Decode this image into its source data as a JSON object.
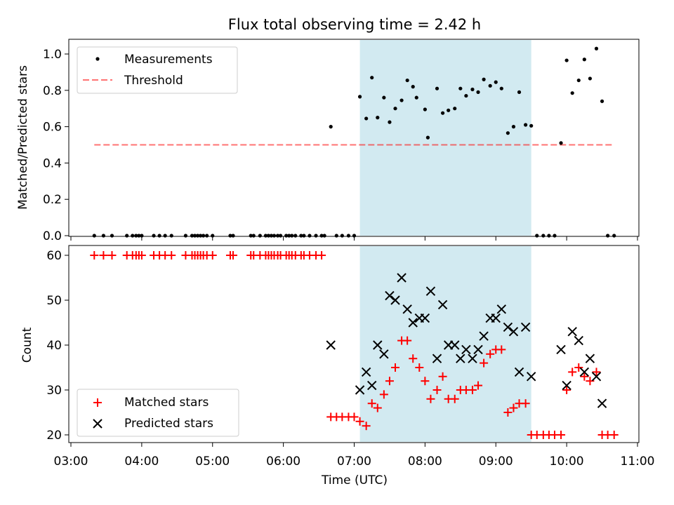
{
  "figure": {
    "title": "Flux total observing time = 2.42 h"
  },
  "chart_data": [
    {
      "type": "scatter",
      "ylabel": "Matched/Predicted stars",
      "ylim": [
        0,
        1.08
      ],
      "yticks": [
        "0.0",
        "0.2",
        "0.4",
        "0.6",
        "0.8",
        "1.0"
      ],
      "xlim": [
        3.0,
        11.0
      ],
      "shaded_span": [
        7.08,
        9.5
      ],
      "legend": [
        "Measurements",
        "Threshold"
      ],
      "threshold": {
        "x": [
          3.33,
          10.67
        ],
        "y": 0.5
      },
      "series": [
        {
          "name": "Measurements",
          "x": [
            3.33,
            3.46,
            3.58,
            3.79,
            3.87,
            3.92,
            3.96,
            4.0,
            4.17,
            4.25,
            4.33,
            4.42,
            4.62,
            4.71,
            4.75,
            4.79,
            4.83,
            4.87,
            4.92,
            5.0,
            5.25,
            5.29,
            5.54,
            5.58,
            5.67,
            5.75,
            5.79,
            5.83,
            5.87,
            5.92,
            5.96,
            6.04,
            6.08,
            6.12,
            6.17,
            6.25,
            6.29,
            6.37,
            6.46,
            6.54,
            6.58,
            6.67,
            6.75,
            6.83,
            6.92,
            7.0,
            7.08,
            7.17,
            7.25,
            7.33,
            7.42,
            7.5,
            7.58,
            7.67,
            7.75,
            7.83,
            7.88,
            8.0,
            8.04,
            8.17,
            8.25,
            8.33,
            8.42,
            8.5,
            8.58,
            8.67,
            8.75,
            8.83,
            8.92,
            9.0,
            9.08,
            9.17,
            9.25,
            9.33,
            9.42,
            9.5,
            9.58,
            9.67,
            9.75,
            9.83,
            9.92,
            10.0,
            10.08,
            10.17,
            10.25,
            10.33,
            10.42,
            10.5,
            10.58,
            10.67
          ],
          "y": [
            0,
            0,
            0,
            0,
            0,
            0,
            0,
            0,
            0,
            0,
            0,
            0,
            0,
            0,
            0,
            0,
            0,
            0,
            0,
            0,
            0,
            0,
            0,
            0,
            0,
            0,
            0,
            0,
            0,
            0,
            0,
            0,
            0,
            0,
            0,
            0,
            0,
            0,
            0,
            0,
            0,
            0.6,
            0,
            0,
            0,
            0,
            0.765,
            0.645,
            0.87,
            0.65,
            0.76,
            0.625,
            0.7,
            0.745,
            0.855,
            0.82,
            0.76,
            0.695,
            0.54,
            0.81,
            0.675,
            0.69,
            0.7,
            0.81,
            0.77,
            0.805,
            0.79,
            0.86,
            0.825,
            0.845,
            0.81,
            0.565,
            0.6,
            0.79,
            0.61,
            0.605,
            0,
            0,
            0,
            0,
            0.51,
            0.965,
            0.785,
            0.855,
            0.97,
            0.865,
            1.03,
            0.74,
            0,
            0
          ]
        }
      ]
    },
    {
      "type": "scatter",
      "ylabel": "Count",
      "xlabel": "Time (UTC)",
      "ylim": [
        18,
        62
      ],
      "yticks": [
        "20",
        "30",
        "40",
        "50",
        "60"
      ],
      "xlim": [
        3.0,
        11.0
      ],
      "xticks": [
        "03:00",
        "04:00",
        "05:00",
        "06:00",
        "07:00",
        "08:00",
        "09:00",
        "10:00",
        "11:00"
      ],
      "shaded_span": [
        7.08,
        9.5
      ],
      "legend": [
        "Matched stars",
        "Predicted stars"
      ],
      "series": [
        {
          "name": "Matched stars",
          "x": [
            3.33,
            3.46,
            3.58,
            3.79,
            3.87,
            3.92,
            3.96,
            4.0,
            4.17,
            4.25,
            4.33,
            4.42,
            4.62,
            4.71,
            4.75,
            4.79,
            4.83,
            4.87,
            4.92,
            5.0,
            5.25,
            5.29,
            5.54,
            5.58,
            5.67,
            5.75,
            5.79,
            5.83,
            5.87,
            5.92,
            5.96,
            6.04,
            6.08,
            6.12,
            6.17,
            6.25,
            6.29,
            6.37,
            6.46,
            6.54,
            6.67,
            6.75,
            6.83,
            6.92,
            7.0,
            7.08,
            7.17,
            7.25,
            7.33,
            7.42,
            7.5,
            7.58,
            7.67,
            7.75,
            7.83,
            7.92,
            8.0,
            8.08,
            8.17,
            8.25,
            8.33,
            8.42,
            8.5,
            8.58,
            8.67,
            8.75,
            8.83,
            8.92,
            9.0,
            9.08,
            9.17,
            9.25,
            9.33,
            9.42,
            9.5,
            9.58,
            9.67,
            9.75,
            9.83,
            9.92,
            10.0,
            10.08,
            10.17,
            10.25,
            10.33,
            10.42,
            10.5,
            10.58,
            10.67
          ],
          "y": [
            60,
            60,
            60,
            60,
            60,
            60,
            60,
            60,
            60,
            60,
            60,
            60,
            60,
            60,
            60,
            60,
            60,
            60,
            60,
            60,
            60,
            60,
            60,
            60,
            60,
            60,
            60,
            60,
            60,
            60,
            60,
            60,
            60,
            60,
            60,
            60,
            60,
            60,
            60,
            60,
            24,
            24,
            24,
            24,
            24,
            23,
            22,
            27,
            26,
            29,
            32,
            35,
            41,
            41,
            37,
            35,
            32,
            28,
            30,
            33,
            28,
            28,
            30,
            30,
            30,
            31,
            36,
            38,
            39,
            39,
            25,
            26,
            27,
            27,
            20,
            20,
            20,
            20,
            20,
            20,
            30,
            34,
            35,
            33,
            32,
            34,
            20,
            20,
            20
          ]
        },
        {
          "name": "Predicted stars",
          "x": [
            6.67,
            7.08,
            7.17,
            7.25,
            7.33,
            7.42,
            7.5,
            7.58,
            7.67,
            7.75,
            7.83,
            7.92,
            8.0,
            8.08,
            8.17,
            8.25,
            8.33,
            8.42,
            8.5,
            8.58,
            8.67,
            8.75,
            8.83,
            8.92,
            9.0,
            9.08,
            9.17,
            9.25,
            9.33,
            9.42,
            9.5,
            9.92,
            10.0,
            10.08,
            10.17,
            10.25,
            10.33,
            10.42,
            10.5
          ],
          "y": [
            40,
            30,
            34,
            31,
            40,
            38,
            51,
            50,
            55,
            48,
            45,
            46,
            46,
            52,
            37,
            49,
            40,
            40,
            37,
            39,
            37,
            39,
            42,
            46,
            46,
            48,
            44,
            43,
            34,
            44,
            33,
            39,
            31,
            43,
            41,
            34,
            37,
            33,
            27
          ]
        }
      ]
    }
  ]
}
